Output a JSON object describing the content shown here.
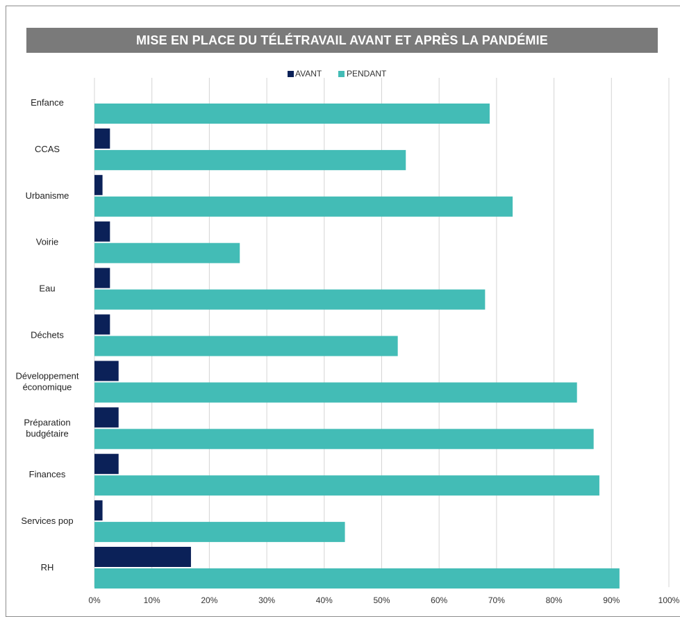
{
  "chart_data": {
    "type": "bar",
    "orientation": "horizontal",
    "title": "MISE EN PLACE DU TÉLÉTRAVAIL AVANT ET APRÈS LA PANDÉMIE",
    "categories": [
      [
        "Enfance"
      ],
      [
        "CCAS"
      ],
      [
        "Urbanisme"
      ],
      [
        "Voirie"
      ],
      [
        "Eau"
      ],
      [
        "Déchets"
      ],
      [
        "Développement",
        "économique"
      ],
      [
        "Préparation",
        "budgétaire"
      ],
      [
        "Finances"
      ],
      [
        "Services pop"
      ],
      [
        "RH"
      ]
    ],
    "series": [
      {
        "name": "AVANT",
        "color": "#0b2158",
        "values": [
          0,
          2.7,
          1.4,
          2.7,
          2.7,
          2.7,
          4.2,
          4.2,
          4.2,
          1.4,
          16.8
        ]
      },
      {
        "name": "PENDANT",
        "color": "#43bcb6",
        "values": [
          68.8,
          54.2,
          72.8,
          25.3,
          68.0,
          52.8,
          84.0,
          86.9,
          87.9,
          43.6,
          91.4
        ]
      }
    ],
    "xlim": [
      0,
      100
    ],
    "x_unit": "%",
    "x_ticks": [
      0,
      10,
      20,
      30,
      40,
      50,
      60,
      70,
      80,
      90,
      100
    ],
    "grid": "vertical",
    "legend": "top-center"
  }
}
